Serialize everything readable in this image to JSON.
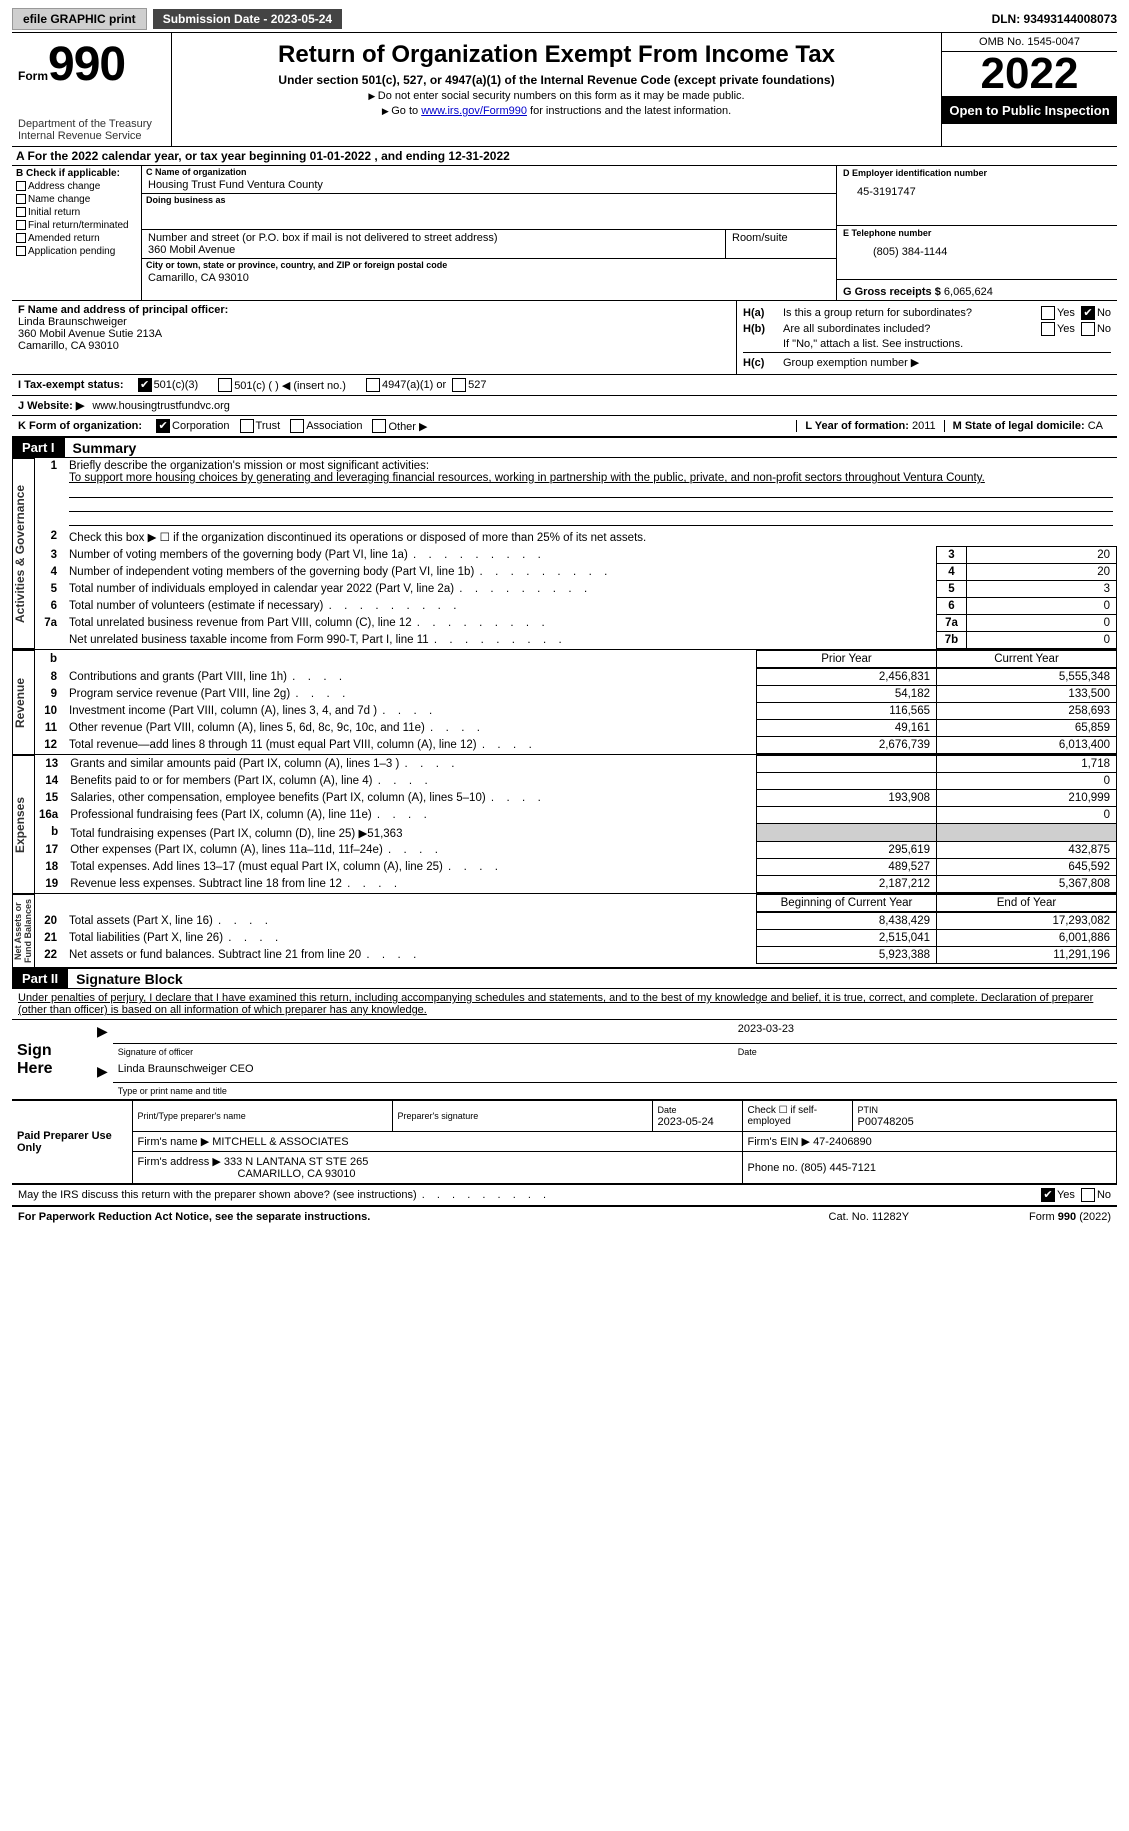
{
  "topbar": {
    "efile": "efile GRAPHIC print",
    "subdate_lbl": "Submission Date - 2023-05-24",
    "dln": "DLN: 93493144008073"
  },
  "header": {
    "form_small": "Form",
    "form_big": "990",
    "title": "Return of Organization Exempt From Income Tax",
    "sub": "Under section 501(c), 527, or 4947(a)(1) of the Internal Revenue Code (except private foundations)",
    "note1": "Do not enter social security numbers on this form as it may be made public.",
    "note2_pre": "Go to ",
    "note2_link": "www.irs.gov/Form990",
    "note2_post": " for instructions and the latest information.",
    "dept": "Department of the Treasury\nInternal Revenue Service",
    "omb": "OMB No. 1545-0047",
    "year": "2022",
    "open": "Open to Public Inspection"
  },
  "period": {
    "text_a": "A For the 2022 calendar year, or tax year beginning 01-01-2022",
    "text_b": ", and ending 12-31-2022"
  },
  "colB": {
    "hdr": "B Check if applicable:",
    "items": [
      "Address change",
      "Name change",
      "Initial return",
      "Final return/terminated",
      "Amended return",
      "Application pending"
    ]
  },
  "colC": {
    "name_lbl": "C Name of organization",
    "name": "Housing Trust Fund Ventura County",
    "dba_lbl": "Doing business as",
    "dba": "",
    "addr_lbl": "Number and street (or P.O. box if mail is not delivered to street address)",
    "room_lbl": "Room/suite",
    "addr": "360 Mobil Avenue",
    "city_lbl": "City or town, state or province, country, and ZIP or foreign postal code",
    "city": "Camarillo, CA  93010"
  },
  "colD": {
    "ein_lbl": "D Employer identification number",
    "ein": "45-3191747",
    "tel_lbl": "E Telephone number",
    "tel": "(805) 384-1144",
    "gross_lbl": "G Gross receipts $",
    "gross": "6,065,624"
  },
  "rowF": {
    "lbl": "F Name and address of principal officer:",
    "name": "Linda Braunschweiger",
    "addr1": "360 Mobil Avenue Sutie 213A",
    "addr2": "Camarillo, CA  93010"
  },
  "rowH": {
    "a": "Is this a group return for subordinates?",
    "b": "Are all subordinates included?",
    "note": "If \"No,\" attach a list. See instructions.",
    "c": "Group exemption number ▶",
    "ha": "H(a)",
    "hb": "H(b)",
    "hc": "H(c)",
    "yes": "Yes",
    "no": "No"
  },
  "rowI": {
    "lbl": "I    Tax-exempt status:",
    "o1": "501(c)(3)",
    "o2": "501(c) (  ) ◀ (insert no.)",
    "o3": "4947(a)(1) or",
    "o4": "527"
  },
  "rowJ": {
    "lbl": "J   Website: ▶",
    "val": "www.housingtrustfundvc.org"
  },
  "rowK": {
    "lbl": "K Form of organization:",
    "o1": "Corporation",
    "o2": "Trust",
    "o3": "Association",
    "o4": "Other ▶",
    "l_lbl": "L Year of formation:",
    "l_val": "2011",
    "m_lbl": "M State of legal domicile:",
    "m_val": "CA"
  },
  "part1": {
    "bar": "Part I",
    "title": "Summary"
  },
  "mission": {
    "lbl": "Briefly describe the organization's mission or most significant activities:",
    "text": "To support more housing choices by generating and leveraging financial resources, working in partnership with the public, private, and non-profit sectors throughout Ventura County."
  },
  "line2": "Check this box ▶ ☐ if the organization discontinued its operations or disposed of more than 25% of its net assets.",
  "govlines": [
    {
      "n": "3",
      "d": "Number of voting members of the governing body (Part VI, line 1a)",
      "b": "3",
      "v": "20"
    },
    {
      "n": "4",
      "d": "Number of independent voting members of the governing body (Part VI, line 1b)",
      "b": "4",
      "v": "20"
    },
    {
      "n": "5",
      "d": "Total number of individuals employed in calendar year 2022 (Part V, line 2a)",
      "b": "5",
      "v": "3"
    },
    {
      "n": "6",
      "d": "Total number of volunteers (estimate if necessary)",
      "b": "6",
      "v": "0"
    },
    {
      "n": "7a",
      "d": "Total unrelated business revenue from Part VIII, column (C), line 12",
      "b": "7a",
      "v": "0"
    },
    {
      "n": "",
      "d": "Net unrelated business taxable income from Form 990-T, Part I, line 11",
      "b": "7b",
      "v": "0"
    }
  ],
  "colhdrs": {
    "prior": "Prior Year",
    "current": "Current Year"
  },
  "revenue": [
    {
      "n": "8",
      "d": "Contributions and grants (Part VIII, line 1h)",
      "p": "2,456,831",
      "c": "5,555,348"
    },
    {
      "n": "9",
      "d": "Program service revenue (Part VIII, line 2g)",
      "p": "54,182",
      "c": "133,500"
    },
    {
      "n": "10",
      "d": "Investment income (Part VIII, column (A), lines 3, 4, and 7d )",
      "p": "116,565",
      "c": "258,693"
    },
    {
      "n": "11",
      "d": "Other revenue (Part VIII, column (A), lines 5, 6d, 8c, 9c, 10c, and 11e)",
      "p": "49,161",
      "c": "65,859"
    },
    {
      "n": "12",
      "d": "Total revenue—add lines 8 through 11 (must equal Part VIII, column (A), line 12)",
      "p": "2,676,739",
      "c": "6,013,400"
    }
  ],
  "expenses": [
    {
      "n": "13",
      "d": "Grants and similar amounts paid (Part IX, column (A), lines 1–3 )",
      "p": "",
      "c": "1,718"
    },
    {
      "n": "14",
      "d": "Benefits paid to or for members (Part IX, column (A), line 4)",
      "p": "",
      "c": "0"
    },
    {
      "n": "15",
      "d": "Salaries, other compensation, employee benefits (Part IX, column (A), lines 5–10)",
      "p": "193,908",
      "c": "210,999"
    },
    {
      "n": "16a",
      "d": "Professional fundraising fees (Part IX, column (A), line 11e)",
      "p": "",
      "c": "0"
    },
    {
      "n": "b",
      "d": "Total fundraising expenses (Part IX, column (D), line 25) ▶51,363",
      "p": "GREY",
      "c": "GREY"
    },
    {
      "n": "17",
      "d": "Other expenses (Part IX, column (A), lines 11a–11d, 11f–24e)",
      "p": "295,619",
      "c": "432,875"
    },
    {
      "n": "18",
      "d": "Total expenses. Add lines 13–17 (must equal Part IX, column (A), line 25)",
      "p": "489,527",
      "c": "645,592"
    },
    {
      "n": "19",
      "d": "Revenue less expenses. Subtract line 18 from line 12",
      "p": "2,187,212",
      "c": "5,367,808"
    }
  ],
  "netcolhdrs": {
    "begin": "Beginning of Current Year",
    "end": "End of Year"
  },
  "netassets": [
    {
      "n": "20",
      "d": "Total assets (Part X, line 16)",
      "p": "8,438,429",
      "c": "17,293,082"
    },
    {
      "n": "21",
      "d": "Total liabilities (Part X, line 26)",
      "p": "2,515,041",
      "c": "6,001,886"
    },
    {
      "n": "22",
      "d": "Net assets or fund balances. Subtract line 21 from line 20",
      "p": "5,923,388",
      "c": "11,291,196"
    }
  ],
  "sidelabels": {
    "gov": "Activities & Governance",
    "rev": "Revenue",
    "exp": "Expenses",
    "net": "Net Assets or\nFund Balances"
  },
  "part2": {
    "bar": "Part II",
    "title": "Signature Block"
  },
  "sigdecl": "Under penalties of perjury, I declare that I have examined this return, including accompanying schedules and statements, and to the best of my knowledge and belief, it is true, correct, and complete. Declaration of preparer (other than officer) is based on all information of which preparer has any knowledge.",
  "sign": {
    "here": "Sign Here",
    "sigoff": "Signature of officer",
    "date": "Date",
    "datev": "2023-03-23",
    "name": "Linda Braunschweiger CEO",
    "nametitle": "Type or print name and title"
  },
  "paid": {
    "title": "Paid Preparer Use Only",
    "prepname_lbl": "Print/Type preparer's name",
    "prepsig_lbl": "Preparer's signature",
    "date_lbl": "Date",
    "date": "2023-05-24",
    "self_lbl": "Check ☐ if self-employed",
    "ptin_lbl": "PTIN",
    "ptin": "P00748205",
    "firm_lbl": "Firm's name    ▶",
    "firm": "MITCHELL & ASSOCIATES",
    "ein_lbl": "Firm's EIN ▶",
    "ein": "47-2406890",
    "addr_lbl": "Firm's address ▶",
    "addr1": "333 N LANTANA ST STE 265",
    "addr2": "CAMARILLO, CA  93010",
    "phone_lbl": "Phone no.",
    "phone": "(805) 445-7121"
  },
  "discuss": {
    "q": "May the IRS discuss this return with the preparer shown above? (see instructions)",
    "yes": "Yes",
    "no": "No"
  },
  "footer": {
    "left": "For Paperwork Reduction Act Notice, see the separate instructions.",
    "mid": "Cat. No. 11282Y",
    "right": "Form 990 (2022)"
  }
}
